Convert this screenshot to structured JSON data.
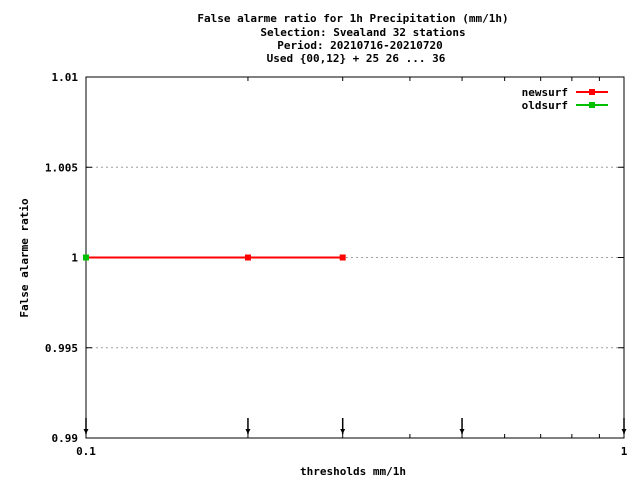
{
  "chart_data": {
    "type": "line",
    "title_lines": [
      "False alarme ratio  for 1h Precipitation (mm/1h)",
      "Selection: Svealand     32 stations",
      "Period: 20210716-20210720",
      "Used {00,12} + 25 26 ... 36"
    ],
    "xlabel": "thresholds mm/1h",
    "ylabel": "False alarme ratio",
    "x_scale": "log",
    "xlim": [
      0.1,
      1
    ],
    "ylim": [
      0.99,
      1.01
    ],
    "x_ticks": [
      {
        "value": 0.1,
        "label": "0.1"
      },
      {
        "value": 1,
        "label": "1"
      }
    ],
    "y_ticks": [
      {
        "value": 0.99,
        "label": "0.99"
      },
      {
        "value": 0.995,
        "label": "0.995"
      },
      {
        "value": 1,
        "label": "1"
      },
      {
        "value": 1.005,
        "label": "1.005"
      },
      {
        "value": 1.01,
        "label": "1.01"
      }
    ],
    "grid": "horizontal dotted",
    "legend_position": "top-right",
    "series": [
      {
        "name": "newsurf",
        "color": "#ff0000",
        "x": [
          0.1,
          0.2,
          0.3
        ],
        "y": [
          1,
          1,
          1
        ]
      },
      {
        "name": "oldsurf",
        "color": "#00c000",
        "x": [
          0.1
        ],
        "y": [
          1
        ]
      }
    ],
    "threshold_arrows_x": [
      0.1,
      0.2,
      0.3,
      0.5,
      1
    ]
  }
}
